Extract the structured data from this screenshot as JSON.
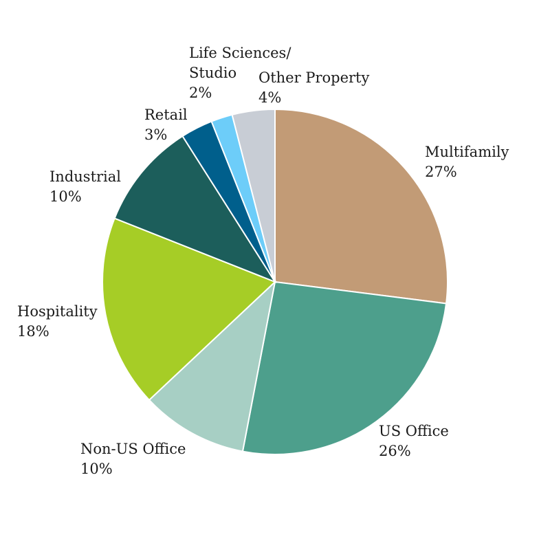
{
  "chart_data": {
    "type": "pie",
    "title": "",
    "start": "12 o'clock",
    "direction": "clockwise",
    "slices": [
      {
        "label": [
          "Multifamily"
        ],
        "percent_label": "27%",
        "value": 27,
        "color": "#c29b76"
      },
      {
        "label": [
          "US Office"
        ],
        "percent_label": "26%",
        "value": 26,
        "color": "#4d9f8c"
      },
      {
        "label": [
          "Non-US Office"
        ],
        "percent_label": "10%",
        "value": 10,
        "color": "#a7cfc4"
      },
      {
        "label": [
          "Hospitality"
        ],
        "percent_label": "18%",
        "value": 18,
        "color": "#a6cd26"
      },
      {
        "label": [
          "Industrial"
        ],
        "percent_label": "10%",
        "value": 10,
        "color": "#1c5e5b"
      },
      {
        "label": [
          "Retail"
        ],
        "percent_label": "3%",
        "value": 3,
        "color": "#005f8c"
      },
      {
        "label": [
          "Life Sciences/",
          "Studio"
        ],
        "percent_label": "2%",
        "value": 2,
        "color": "#6dcdf9"
      },
      {
        "label": [
          "Other Property"
        ],
        "percent_label": "4%",
        "value": 4,
        "color": "#c8cdd5"
      }
    ]
  }
}
